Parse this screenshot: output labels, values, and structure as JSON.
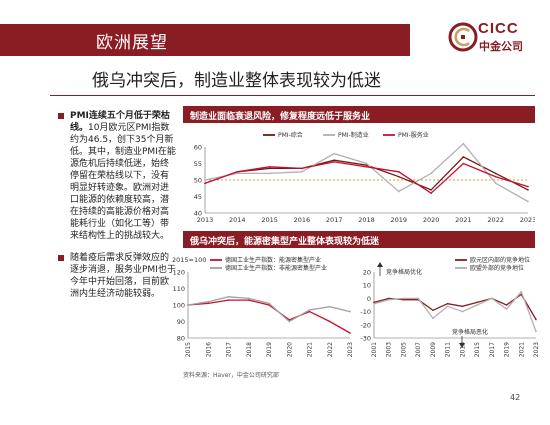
{
  "header": {
    "title": "欧洲展望"
  },
  "logo": {
    "brand": "CICC",
    "sub": "中金公司"
  },
  "subtitle": "俄乌冲突后，制造业整体表现较为低迷",
  "bullets": [
    {
      "title": "PMI连续五个月低于荣枯线。",
      "body": "10月欧元区PMI指数约为46.5，创下35个月新低。其中，制造业PMI在能源危机后持续低迷，始终停留在荣枯线以下，没有明显好转迹象。欧洲对进口能源的依赖度较高，潜在持续的高能源价格对高能耗行业（如化工等）带来结构性上的挑战较大。"
    },
    {
      "title": "",
      "body": "随着疫后需求反弹效应的逐步消退，服务业PMI也于今年中开始回落，目前欧洲内生经济动能较弱。"
    }
  ],
  "chart1": {
    "heading": "制造业面临衰退风险，修复程度远低于服务业"
  },
  "chart2": {
    "heading": "俄乌冲突后，能源密集型产业整体表现较为低迷"
  },
  "source": "资料来源：Haver，中金公司研究部",
  "page_number": "42",
  "chart_data": [
    {
      "type": "line",
      "title": "制造业面临衰退风险，修复程度远低于服务业",
      "x": [
        "2013",
        "2014",
        "2015",
        "2016",
        "2017",
        "2018",
        "2019",
        "2020",
        "2021",
        "2022",
        "2023"
      ],
      "ylim": [
        40,
        60
      ],
      "yticks": [
        "40",
        "45",
        "50",
        "55",
        "60"
      ],
      "reference_line": 50,
      "legend_position": "top",
      "series": [
        {
          "name": "PMI-综合",
          "color": "#6b1a14",
          "values": [
            49,
            52.5,
            53.5,
            53.5,
            56,
            54.5,
            51,
            47,
            57,
            52,
            47
          ]
        },
        {
          "name": "PMI-制造业",
          "color": "#b0b0b0",
          "values": [
            50,
            52,
            52,
            52.5,
            58,
            55,
            46.5,
            52,
            61,
            49,
            43.5
          ]
        },
        {
          "name": "PMI-服务业",
          "color": "#c8102e",
          "values": [
            49,
            52.5,
            54,
            53.5,
            55.5,
            54,
            52.5,
            46,
            55,
            51,
            48
          ]
        }
      ]
    },
    {
      "type": "line",
      "unit_label": "2015=100",
      "x": [
        "2015",
        "2016",
        "2017",
        "2018",
        "2019",
        "2020",
        "2021",
        "2022",
        "2023"
      ],
      "ylim": [
        80,
        120
      ],
      "yticks": [
        "80",
        "90",
        "100",
        "110",
        "120"
      ],
      "legend_position": "top",
      "series": [
        {
          "name": "德国工业生产指数：能源密集型产业",
          "color": "#c8102e",
          "values": [
            100,
            101,
            103,
            103,
            100,
            91,
            96,
            90,
            83
          ]
        },
        {
          "name": "德国工业生产指数：非能源密集型产业",
          "color": "#a0a0a0",
          "values": [
            100,
            102,
            105,
            104,
            101,
            90,
            97,
            99,
            96
          ]
        }
      ]
    },
    {
      "type": "line",
      "x": [
        "2001",
        "2003",
        "2005",
        "2007",
        "2009",
        "2011",
        "2013",
        "2015",
        "2017",
        "2019",
        "2021",
        "2023"
      ],
      "ylim": [
        -30,
        20
      ],
      "yticks": [
        "-30",
        "-20",
        "-10",
        "0",
        "10",
        "20"
      ],
      "annotations": [
        "竞争格局优化",
        "竞争格局恶化"
      ],
      "legend_position": "top-right",
      "series": [
        {
          "name": "欧元区内部的竞争地位",
          "color": "#8a1c24",
          "values": [
            -3,
            0,
            -1,
            -1,
            -9,
            -4,
            -6,
            -3,
            0,
            -5,
            3,
            -16
          ]
        },
        {
          "name": "欧盟外部的竞争地位",
          "color": "#b0b0b0",
          "values": [
            -4,
            -1,
            0,
            0,
            -15,
            -6,
            -10,
            -5,
            0,
            -8,
            5,
            -25
          ]
        }
      ]
    }
  ]
}
